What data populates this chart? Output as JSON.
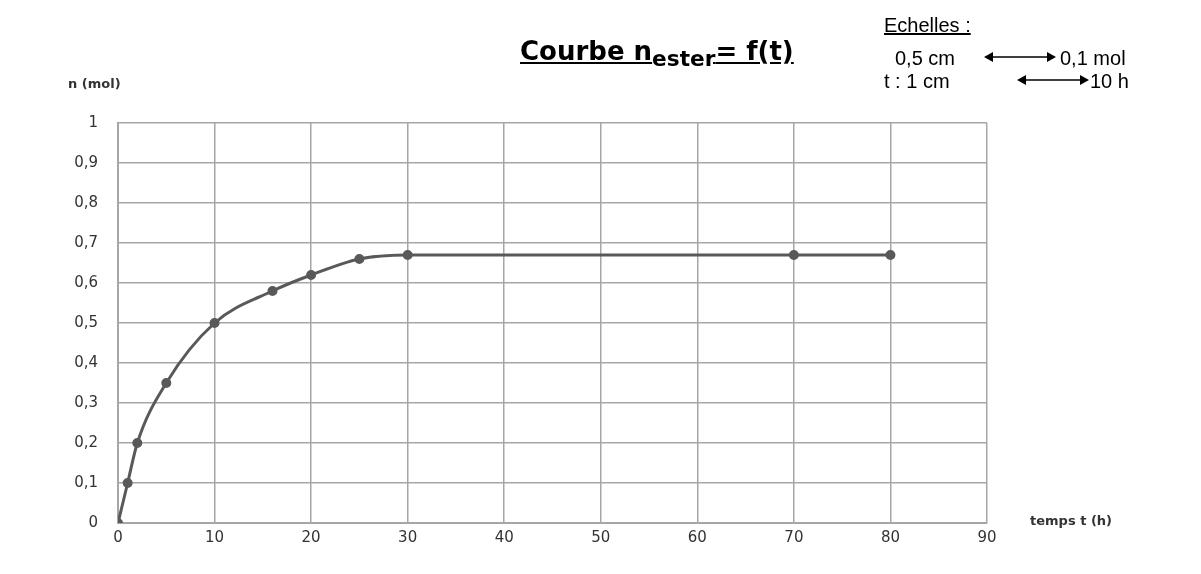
{
  "chart_data": {
    "type": "line",
    "title": "Courbe  n$_{ester}$= f(t)",
    "xlabel": "temps t (h)",
    "ylabel": "n (mol)",
    "annotations": [
      "Echelles :",
      "0,5 cm",
      "0,1 mol",
      "t : 1 cm",
      "10 h"
    ],
    "x": [
      0,
      1,
      2,
      5,
      10,
      16,
      20,
      25,
      30,
      70,
      80
    ],
    "series": [
      {
        "color": "#595959",
        "values": [
          0,
          0.1,
          0.2,
          0.35,
          0.5,
          0.58,
          0.62,
          0.66,
          0.67,
          0.67,
          0.67
        ]
      }
    ],
    "xlim": [
      0,
      90
    ],
    "xticks": [
      0,
      10,
      20,
      30,
      40,
      50,
      60,
      70,
      80,
      90
    ],
    "ylim": [
      0,
      1
    ],
    "yticks": [
      0,
      {
        "value": 0.1,
        "label": "0,1"
      },
      {
        "value": 0.2,
        "label": "0,2"
      },
      {
        "value": 0.3,
        "label": "0,3"
      },
      {
        "value": 0.4,
        "label": "0,4"
      },
      {
        "value": 0.5,
        "label": "0,5"
      },
      {
        "value": 0.6,
        "label": "0,6"
      },
      {
        "value": 0.7,
        "label": "0,7"
      },
      {
        "value": 0.8,
        "label": "0,8"
      },
      {
        "value": 0.9,
        "label": "0,9"
      },
      1
    ],
    "grid": true,
    "legend": false,
    "marker": "circle",
    "line_style": "solid"
  }
}
